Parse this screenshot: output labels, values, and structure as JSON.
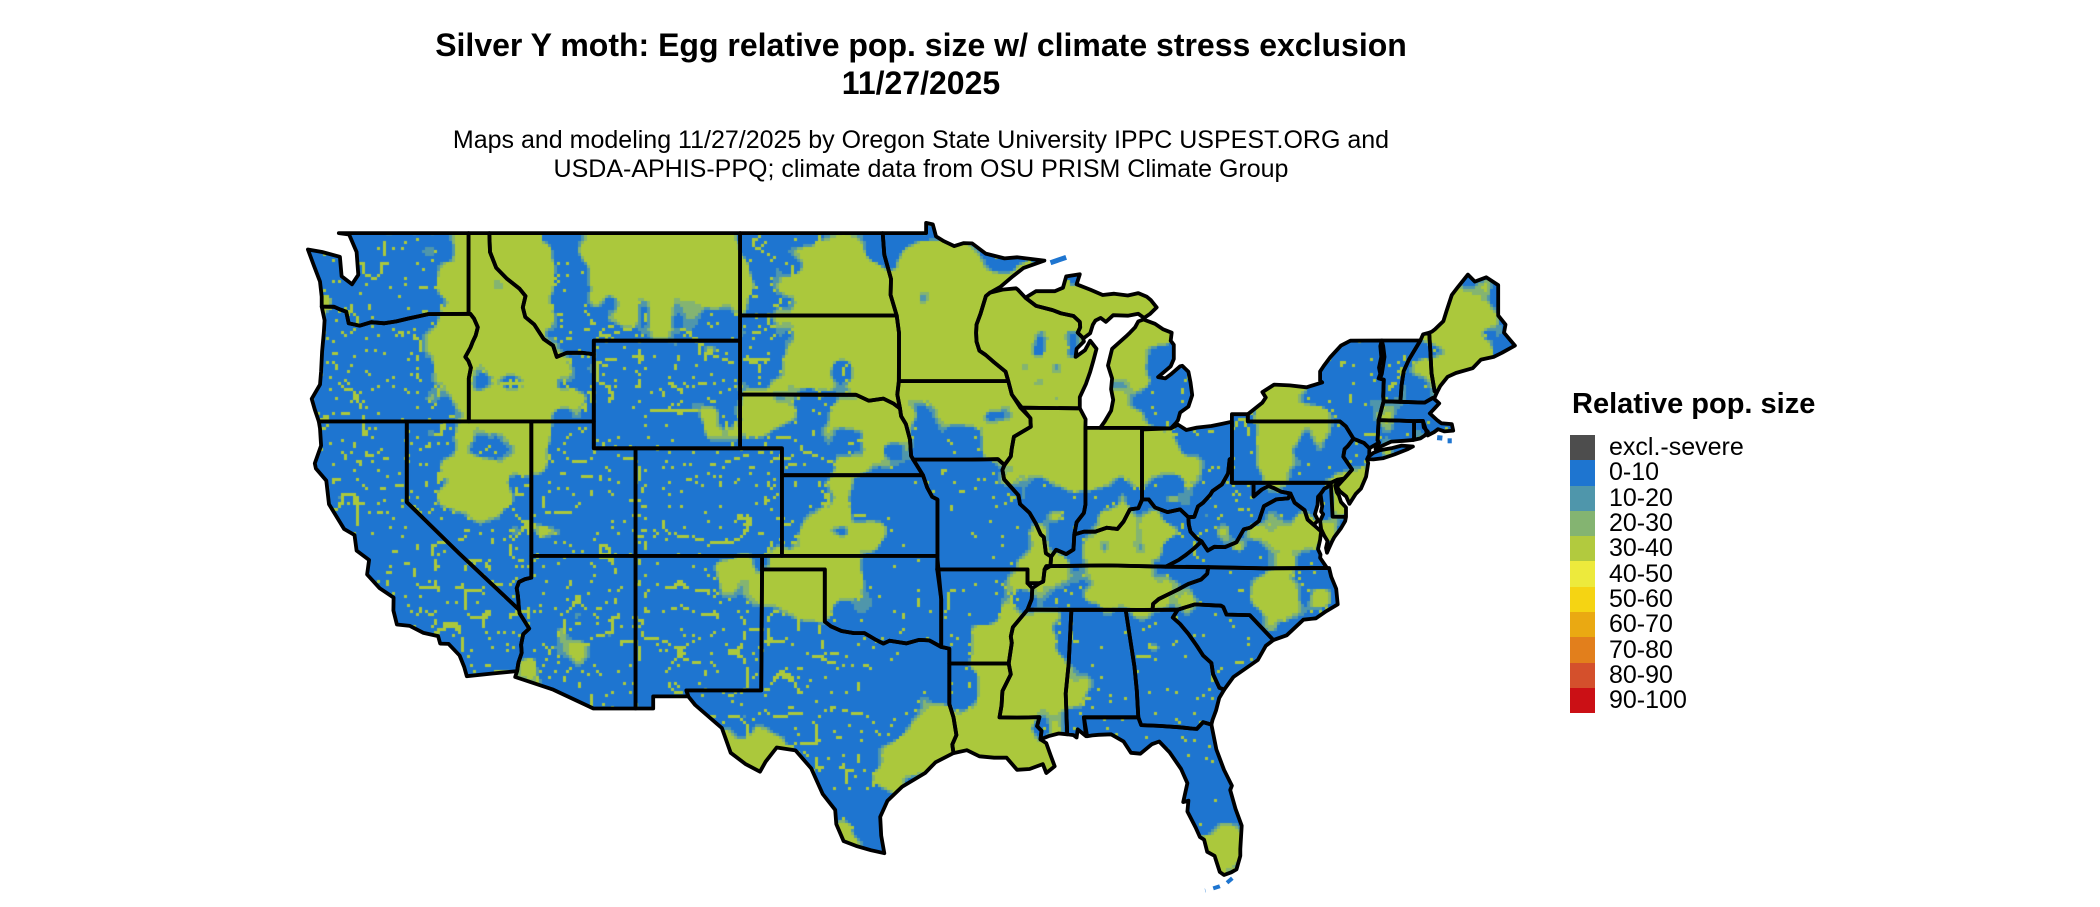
{
  "title": {
    "line1": "Silver Y moth: Egg relative pop. size w/ climate stress exclusion",
    "line2": "11/27/2025"
  },
  "caption": {
    "line1": "Maps and modeling 11/27/2025 by Oregon State University IPPC USPEST.ORG and",
    "line2": "USDA-APHIS-PPQ; climate data from OSU PRISM Climate Group"
  },
  "legend": {
    "title": "Relative pop. size",
    "items": [
      {
        "label": "excl.-severe",
        "color": "#4d4d4d"
      },
      {
        "label": "0-10",
        "color": "#1e75d0"
      },
      {
        "label": "10-20",
        "color": "#4f96ab"
      },
      {
        "label": "20-30",
        "color": "#84b471"
      },
      {
        "label": "30-40",
        "color": "#b2ca3e"
      },
      {
        "label": "40-50",
        "color": "#edea3c"
      },
      {
        "label": "50-60",
        "color": "#f5d413"
      },
      {
        "label": "60-70",
        "color": "#eaa912"
      },
      {
        "label": "70-80",
        "color": "#e27f1c"
      },
      {
        "label": "80-90",
        "color": "#d4502c"
      },
      {
        "label": "90-100",
        "color": "#cb1015"
      }
    ]
  },
  "map": {
    "land_color": "#1e75d0",
    "speckle_teal": "#4f96ab",
    "speckle_green": "#84b471",
    "speckle_yellowgreen": "#abc83c",
    "border_color": "#000000"
  }
}
